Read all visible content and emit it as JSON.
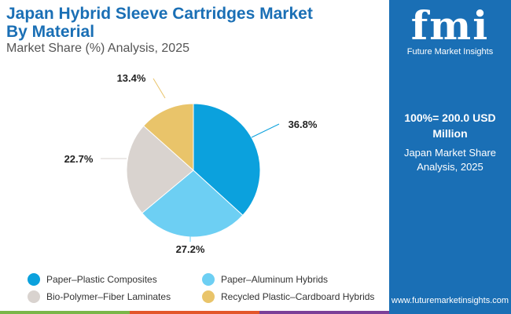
{
  "header": {
    "title_line1": "Japan Hybrid Sleeve Cartridges Market",
    "title_line2": "By Material",
    "subtitle": "Market Share (%) Analysis, 2025"
  },
  "panel": {
    "logo_text": "fmi",
    "logo_name": "Future Market Insights",
    "total": "100%= 200.0 USD Million",
    "share_label": "Japan Market Share Analysis, 2025",
    "url": "www.futuremarketinsights.com",
    "background": "#1a6fb5"
  },
  "chart_data": {
    "type": "pie",
    "categories": [
      "Paper–Plastic Composites",
      "Paper–Aluminum Hybrids",
      "Bio-Polymer–Fiber Laminates",
      "Recycled Plastic–Cardboard Hybrids"
    ],
    "values": [
      36.8,
      27.2,
      22.7,
      13.4
    ],
    "labels": [
      "36.8%",
      "27.2%",
      "22.7%",
      "13.4%"
    ],
    "colors": [
      "#0ba1dd",
      "#6dcff3",
      "#d9d3cf",
      "#e9c46a"
    ],
    "legend_position": "bottom"
  },
  "stripes": [
    "#7ab648",
    "#e3562a",
    "#7b3f98"
  ]
}
